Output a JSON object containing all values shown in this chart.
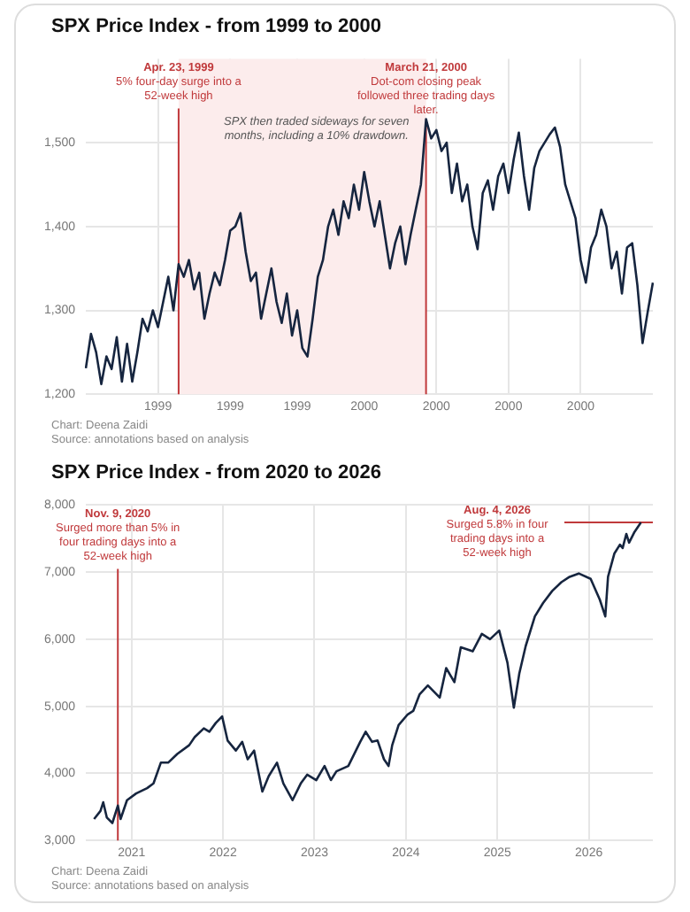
{
  "chart_data": [
    {
      "type": "line",
      "title": "SPX Price Index - from 1999 to 2000",
      "categories": [
        null,
        null,
        null,
        null,
        null,
        null,
        null,
        null,
        null,
        null,
        null,
        null,
        null,
        null,
        "1999",
        null,
        null,
        null,
        null,
        null,
        null,
        null,
        null,
        null,
        null,
        null,
        null,
        null,
        "1999",
        null,
        null,
        null,
        null,
        null,
        null,
        null,
        null,
        null,
        null,
        null,
        null,
        "1999",
        null,
        null,
        null,
        null,
        null,
        null,
        null,
        null,
        null,
        null,
        null,
        null,
        "2000",
        null,
        null,
        null,
        null,
        null,
        null,
        null,
        null,
        null,
        null,
        null,
        null,
        null,
        "2000",
        null,
        null,
        null,
        null,
        null,
        null,
        null,
        null,
        null,
        null,
        null,
        null,
        null,
        "2000",
        null,
        null,
        null,
        null,
        null,
        null,
        null,
        null,
        null,
        null,
        null,
        null,
        null,
        "2000",
        null,
        null,
        null,
        null,
        null,
        null,
        null,
        null,
        null,
        null,
        null,
        null,
        null,
        null
      ],
      "series": [
        {
          "color": "#16253f",
          "values": [
            1231,
            1272,
            1250,
            1212,
            1245,
            1230,
            1268,
            1215,
            1260,
            1215,
            1250,
            1290,
            1275,
            1300,
            1280,
            1310,
            1340,
            1300,
            1355,
            1340,
            1360,
            1325,
            1345,
            1290,
            1320,
            1345,
            1330,
            1360,
            1395,
            1400,
            1416,
            1370,
            1335,
            1345,
            1290,
            1320,
            1350,
            1310,
            1285,
            1320,
            1270,
            1300,
            1255,
            1245,
            1290,
            1340,
            1360,
            1400,
            1420,
            1390,
            1430,
            1410,
            1450,
            1420,
            1465,
            1430,
            1400,
            1430,
            1390,
            1350,
            1380,
            1400,
            1355,
            1390,
            1420,
            1450,
            1528,
            1505,
            1515,
            1490,
            1500,
            1440,
            1475,
            1430,
            1450,
            1400,
            1373,
            1440,
            1455,
            1420,
            1460,
            1475,
            1440,
            1480,
            1512,
            1460,
            1420,
            1470,
            1490,
            1500,
            1510,
            1518,
            1495,
            1450,
            1430,
            1410,
            1360,
            1333,
            1375,
            1390,
            1420,
            1400,
            1350,
            1370,
            1320,
            1375,
            1380,
            1330,
            1261,
            1298,
            1333
          ]
        }
      ],
      "ylim": [
        1200,
        1600
      ],
      "yticks": [
        {
          "value": 1200,
          "label": "1,200"
        },
        {
          "value": 1300,
          "label": "1,300"
        },
        {
          "value": 1400,
          "label": "1,400"
        },
        {
          "value": 1500,
          "label": "1,500"
        }
      ],
      "grid": true,
      "legend": false,
      "annotations": [
        "Apr. 23, 1999\n5% four-day surge into a 52-week high",
        "March 21, 2000\nDot-com closing peak followed three trading days later.",
        "SPX then traded sideways for seven months, including a 10% drawdown.",
        "Chart: Deena Zaidi",
        "Source: annotations based on analysis"
      ]
    },
    {
      "type": "line",
      "title": "SPX Price Index - from 2020 to 2026",
      "series": [
        {
          "color": "#16253f",
          "x": [
            2020.59,
            2020.66,
            2020.69,
            2020.73,
            2020.79,
            2020.85,
            2020.88,
            2020.95,
            2021.05,
            2021.17,
            2021.24,
            2021.32,
            2021.4,
            2021.5,
            2021.63,
            2021.69,
            2021.79,
            2021.85,
            2021.92,
            2021.99,
            2022.05,
            2022.14,
            2022.21,
            2022.27,
            2022.34,
            2022.43,
            2022.5,
            2022.59,
            2022.66,
            2022.76,
            2022.85,
            2022.92,
            2023.02,
            2023.11,
            2023.18,
            2023.24,
            2023.37,
            2023.5,
            2023.56,
            2023.63,
            2023.69,
            2023.76,
            2023.81,
            2023.85,
            2023.92,
            2024.02,
            2024.08,
            2024.15,
            2024.24,
            2024.37,
            2024.44,
            2024.53,
            2024.6,
            2024.73,
            2024.83,
            2024.92,
            2025.02,
            2025.11,
            2025.18,
            2025.24,
            2025.31,
            2025.41,
            2025.5,
            2025.6,
            2025.7,
            2025.79,
            2025.89,
            2026.02,
            2026.12,
            2026.18,
            2026.21,
            2026.28,
            2026.34,
            2026.37,
            2026.41,
            2026.44,
            2026.5,
            2026.57
          ],
          "values": [
            3320,
            3440,
            3570,
            3340,
            3260,
            3520,
            3320,
            3600,
            3700,
            3780,
            3850,
            4160,
            4160,
            4290,
            4420,
            4540,
            4670,
            4620,
            4750,
            4850,
            4490,
            4340,
            4470,
            4210,
            4340,
            3730,
            3960,
            4160,
            3850,
            3600,
            3850,
            3980,
            3900,
            4110,
            3900,
            4030,
            4110,
            4470,
            4620,
            4470,
            4490,
            4210,
            4110,
            4420,
            4720,
            4880,
            4930,
            5180,
            5310,
            5130,
            5570,
            5360,
            5880,
            5820,
            6080,
            6000,
            6130,
            5650,
            4980,
            5490,
            5900,
            6340,
            6540,
            6720,
            6850,
            6930,
            6980,
            6900,
            6590,
            6340,
            6930,
            7280,
            7410,
            7360,
            7570,
            7440,
            7600,
            7740
          ]
        }
      ],
      "xlim": [
        2020.5,
        2026.7
      ],
      "xticks": [
        2021,
        2022,
        2023,
        2024,
        2025,
        2026
      ],
      "ylim": [
        3000,
        8000
      ],
      "yticks": [
        {
          "value": 3000,
          "label": "3,000"
        },
        {
          "value": 4000,
          "label": "4,000"
        },
        {
          "value": 5000,
          "label": "5,000"
        },
        {
          "value": 6000,
          "label": "6,000"
        },
        {
          "value": 7000,
          "label": "7,000"
        },
        {
          "value": 8000,
          "label": "8,000"
        }
      ],
      "grid": true,
      "legend": false,
      "ref_lines": [
        {
          "axis": "x",
          "value": 2020.85,
          "label": "Nov. 9, 2020\nSurged more than 5% in four trading days into a 52-week high",
          "color": "#c0393b"
        },
        {
          "axis": "y",
          "value": 7740,
          "label": "Aug. 4, 2026\nSurged 5.8% in four trading days into a 52-week high",
          "color": "#c0393b"
        }
      ],
      "annotations": [
        "Chart: Deena Zaidi",
        "Source: annotations based on analysis"
      ]
    }
  ]
}
